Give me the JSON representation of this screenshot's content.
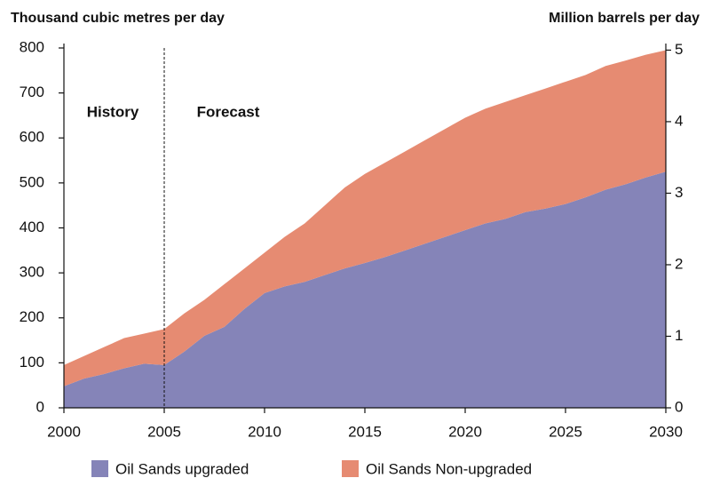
{
  "chart_data": {
    "type": "stacked_area",
    "ylabel": "Thousand cubic metres per day",
    "y2label": "Million barrels per day",
    "annotations": [
      "History",
      "Forecast"
    ],
    "divider": 2005,
    "x": [
      2000,
      2001,
      2002,
      2003,
      2004,
      2005,
      2006,
      2007,
      2008,
      2009,
      2010,
      2011,
      2012,
      2013,
      2014,
      2015,
      2016,
      2017,
      2018,
      2019,
      2020,
      2021,
      2022,
      2023,
      2024,
      2025,
      2026,
      2027,
      2028,
      2029,
      2030
    ],
    "series": [
      {
        "name": "Oil Sands upgraded",
        "color": "#8584b8",
        "values": [
          48,
          65,
          75,
          88,
          98,
          95,
          125,
          160,
          180,
          220,
          255,
          270,
          280,
          295,
          310,
          322,
          335,
          350,
          365,
          380,
          395,
          410,
          420,
          435,
          443,
          453,
          468,
          485,
          497,
          512,
          525
        ]
      },
      {
        "name": "Oil Sands Non-upgraded",
        "color": "#e68b72",
        "values": [
          47,
          50,
          60,
          67,
          67,
          80,
          85,
          80,
          95,
          90,
          90,
          110,
          130,
          155,
          180,
          198,
          210,
          220,
          230,
          240,
          250,
          255,
          260,
          260,
          267,
          272,
          272,
          275,
          275,
          273,
          270
        ]
      }
    ],
    "xlim": [
      2000,
      2030
    ],
    "xticks": [
      2000,
      2005,
      2010,
      2015,
      2020,
      2025,
      2030
    ],
    "ylim": [
      0,
      800
    ],
    "yticks": [
      0,
      100,
      200,
      300,
      400,
      500,
      600,
      700,
      800
    ],
    "y2lim": [
      0,
      5.03
    ],
    "y2ticks": [
      0,
      1,
      2,
      3,
      4,
      5
    ],
    "legend": "bottom"
  }
}
